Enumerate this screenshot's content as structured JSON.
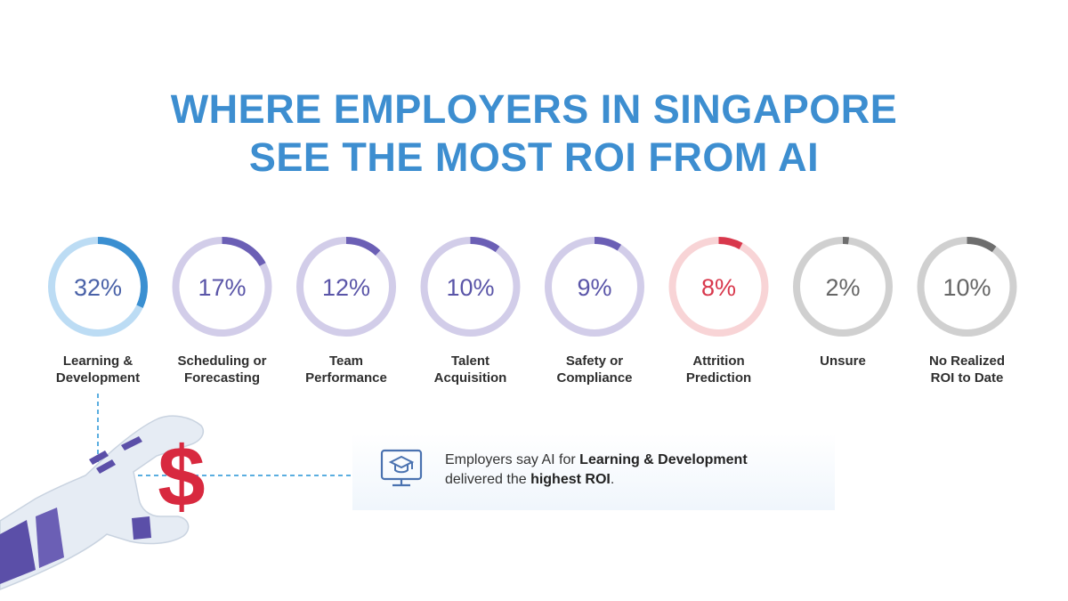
{
  "title": {
    "line1": "WHERE EMPLOYERS IN SINGAPORE",
    "line2": "SEE THE MOST ROI FROM AI"
  },
  "chart_data": {
    "type": "pie",
    "title": "WHERE EMPLOYERS IN SINGAPORE SEE THE MOST ROI FROM AI",
    "unit": "%",
    "items": [
      {
        "label_lines": [
          "Learning &",
          "Development"
        ],
        "value": 32,
        "display": "32%",
        "arc_color": "#3a8fd1",
        "track_color": "#bcdcf4",
        "text_color": "#4a62a8"
      },
      {
        "label_lines": [
          "Scheduling or",
          "Forecasting"
        ],
        "value": 17,
        "display": "17%",
        "arc_color": "#6b5fb5",
        "track_color": "#d2cde9",
        "text_color": "#5a55a8"
      },
      {
        "label_lines": [
          "Team",
          "Performance"
        ],
        "value": 12,
        "display": "12%",
        "arc_color": "#6b5fb5",
        "track_color": "#d2cde9",
        "text_color": "#5a55a8"
      },
      {
        "label_lines": [
          "Talent",
          "Acquisition"
        ],
        "value": 10,
        "display": "10%",
        "arc_color": "#6b5fb5",
        "track_color": "#d2cde9",
        "text_color": "#5a55a8"
      },
      {
        "label_lines": [
          "Safety or",
          "Compliance"
        ],
        "value": 9,
        "display": "9%",
        "arc_color": "#6b5fb5",
        "track_color": "#d2cde9",
        "text_color": "#5a55a8"
      },
      {
        "label_lines": [
          "Attrition",
          "Prediction"
        ],
        "value": 8,
        "display": "8%",
        "arc_color": "#d8384c",
        "track_color": "#f8d4d6",
        "text_color": "#d8384c"
      },
      {
        "label_lines": [
          "Unsure"
        ],
        "value": 2,
        "display": "2%",
        "arc_color": "#6e6e6e",
        "track_color": "#d0d0d0",
        "text_color": "#666666"
      },
      {
        "label_lines": [
          "No Realized",
          "ROI to Date"
        ],
        "value": 10,
        "display": "10%",
        "arc_color": "#6e6e6e",
        "track_color": "#d0d0d0",
        "text_color": "#666666"
      }
    ]
  },
  "callout": {
    "part1": "Employers say AI for ",
    "bold1": "Learning & Development",
    "part2": "delivered the ",
    "bold2": "highest ROI",
    "part3": "."
  },
  "colors": {
    "title": "#3d8ed0",
    "connector": "#5aaee0",
    "dollar": "#d8293f",
    "robot_hand": "#e6ecf4",
    "robot_band": "#5b4fa8"
  },
  "icons": {
    "callout": "monitor-graduation-cap-icon",
    "illustration": "robot-hand-holding-dollar-icon"
  }
}
